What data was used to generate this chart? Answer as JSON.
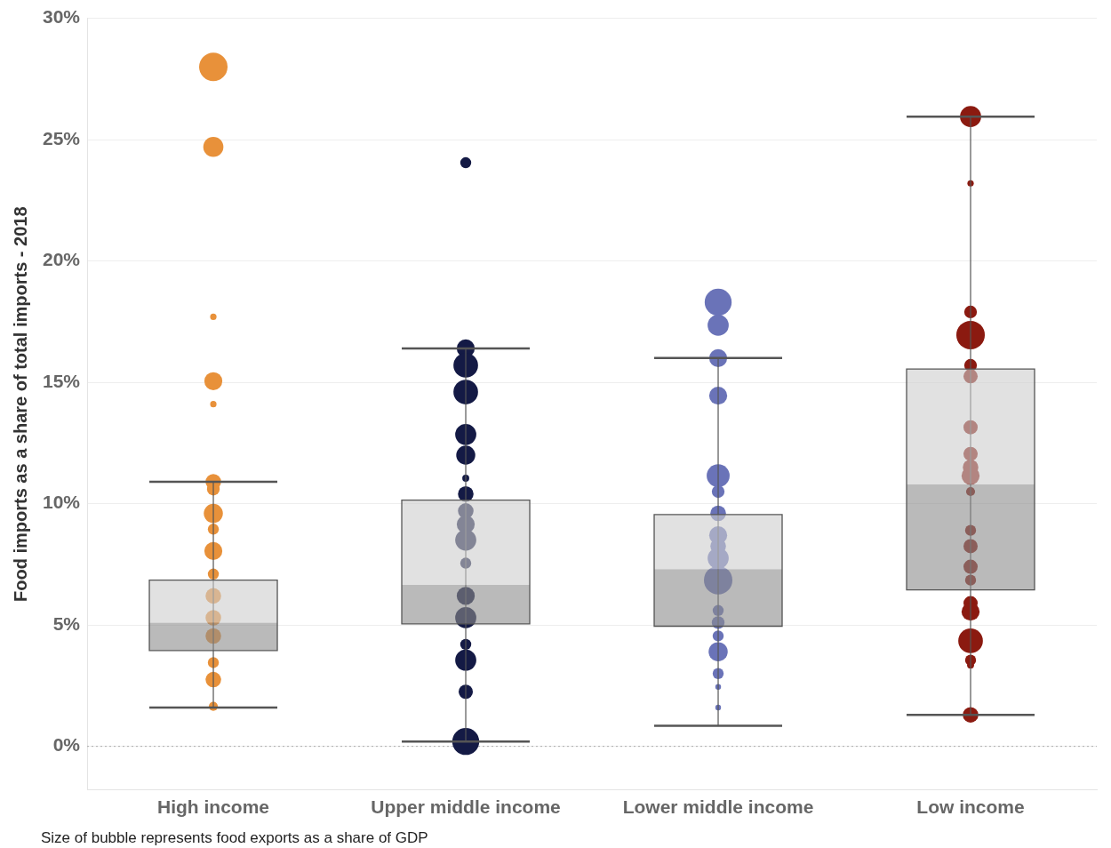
{
  "chart_data": {
    "type": "box",
    "ylabel": "Food imports as a share of total imports - 2018",
    "categories": [
      "High income",
      "Upper middle income",
      "Lower middle income",
      "Low income"
    ],
    "boxes": [
      {
        "low": 1.6,
        "q1": 3.95,
        "median": 5.1,
        "q3": 6.85,
        "high": 10.9
      },
      {
        "low": 0.2,
        "q1": 5.05,
        "median": 6.65,
        "q3": 10.15,
        "high": 16.4
      },
      {
        "low": 0.85,
        "q1": 4.95,
        "median": 7.3,
        "q3": 9.55,
        "high": 16.0
      },
      {
        "low": 1.3,
        "q1": 6.45,
        "median": 10.8,
        "q3": 15.55,
        "high": 25.95
      }
    ],
    "series": [
      {
        "type": "bubble",
        "color": "#e8913a",
        "x": [
          "High income",
          "High income",
          "High income",
          "High income",
          "High income",
          "High income",
          "High income",
          "High income",
          "High income",
          "High income",
          "High income",
          "High income",
          "High income",
          "High income",
          "High income",
          "High income",
          "High income"
        ],
        "values": [
          28.0,
          24.7,
          17.7,
          15.05,
          14.1,
          10.9,
          10.6,
          9.6,
          8.95,
          8.05,
          7.1,
          6.2,
          5.3,
          4.55,
          3.45,
          2.75,
          1.65
        ],
        "sizes": [
          1.0,
          0.5,
          0.05,
          0.4,
          0.05,
          0.3,
          0.2,
          0.45,
          0.15,
          0.4,
          0.15,
          0.3,
          0.3,
          0.3,
          0.15,
          0.3,
          0.1
        ]
      },
      {
        "type": "bubble",
        "color": "#141a45",
        "x": [
          "Upper middle income",
          "Upper middle income",
          "Upper middle income",
          "Upper middle income",
          "Upper middle income",
          "Upper middle income",
          "Upper middle income",
          "Upper middle income",
          "Upper middle income",
          "Upper middle income",
          "Upper middle income",
          "Upper middle income",
          "Upper middle income",
          "Upper middle income",
          "Upper middle income",
          "Upper middle income",
          "Upper middle income",
          "Upper middle income"
        ],
        "values": [
          24.05,
          16.4,
          15.7,
          14.6,
          12.85,
          12.0,
          11.05,
          10.4,
          9.7,
          9.15,
          8.5,
          7.55,
          6.2,
          5.3,
          4.2,
          3.55,
          2.25,
          0.2
        ],
        "sizes": [
          0.15,
          0.4,
          0.75,
          0.75,
          0.55,
          0.45,
          0.06,
          0.3,
          0.3,
          0.4,
          0.55,
          0.15,
          0.4,
          0.55,
          0.15,
          0.55,
          0.25,
          0.9
        ]
      },
      {
        "type": "bubble",
        "color": "#6a73b8",
        "x": [
          "Lower middle income",
          "Lower middle income",
          "Lower middle income",
          "Lower middle income",
          "Lower middle income",
          "Lower middle income",
          "Lower middle income",
          "Lower middle income",
          "Lower middle income",
          "Lower middle income",
          "Lower middle income",
          "Lower middle income",
          "Lower middle income",
          "Lower middle income",
          "Lower middle income",
          "Lower middle income",
          "Lower middle income",
          "Lower middle income"
        ],
        "values": [
          18.3,
          17.35,
          16.0,
          14.45,
          11.15,
          10.5,
          9.6,
          8.7,
          8.25,
          7.75,
          6.85,
          5.6,
          5.1,
          4.55,
          3.9,
          3.0,
          2.45,
          1.6
        ],
        "sizes": [
          0.9,
          0.55,
          0.4,
          0.4,
          0.65,
          0.2,
          0.3,
          0.4,
          0.3,
          0.55,
          1.0,
          0.15,
          0.2,
          0.15,
          0.45,
          0.15,
          0.04,
          0.04
        ]
      },
      {
        "type": "bubble",
        "color": "#8b1a10",
        "x": [
          "Low income",
          "Low income",
          "Low income",
          "Low income",
          "Low income",
          "Low income",
          "Low income",
          "Low income",
          "Low income",
          "Low income",
          "Low income",
          "Low income",
          "Low income",
          "Low income",
          "Low income",
          "Low income",
          "Low income",
          "Low income",
          "Low income",
          "Low income",
          "Low income"
        ],
        "values": [
          25.95,
          23.2,
          17.9,
          16.95,
          15.7,
          15.25,
          13.15,
          12.05,
          11.5,
          11.15,
          10.5,
          8.9,
          8.25,
          7.4,
          6.85,
          5.9,
          5.55,
          4.35,
          3.55,
          3.35,
          1.3
        ],
        "sizes": [
          0.55,
          0.05,
          0.2,
          1.0,
          0.2,
          0.25,
          0.25,
          0.25,
          0.3,
          0.4,
          0.1,
          0.15,
          0.25,
          0.25,
          0.15,
          0.25,
          0.4,
          0.75,
          0.15,
          0.06,
          0.3
        ]
      }
    ],
    "ylim": [
      -1.8,
      30
    ],
    "yticks": [
      {
        "value": 0,
        "label": "0%"
      },
      {
        "value": 5,
        "label": "5%"
      },
      {
        "value": 10,
        "label": "10%"
      },
      {
        "value": 15,
        "label": "15%"
      },
      {
        "value": 20,
        "label": "20%"
      },
      {
        "value": 25,
        "label": "25%"
      },
      {
        "value": 30,
        "label": "30%"
      }
    ],
    "grid": "y",
    "ref_lines": [
      {
        "axis": "y",
        "value": 0,
        "line_style": "dotted",
        "color": "#aaaaaa"
      }
    ],
    "annotations": [
      "Size of bubble represents food exports as a share of GDP"
    ]
  }
}
